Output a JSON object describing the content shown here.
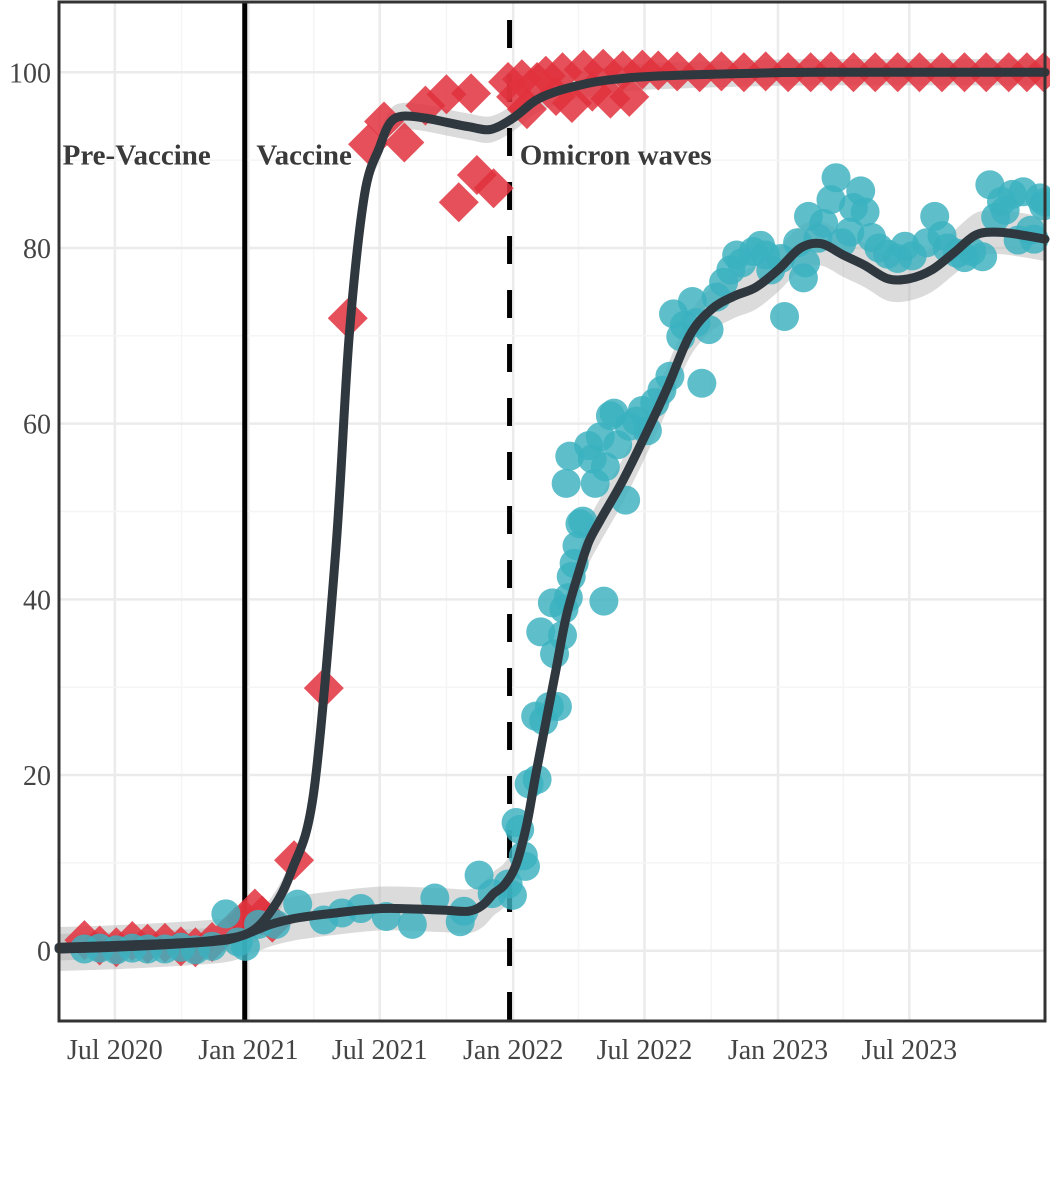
{
  "chart_data": {
    "type": "scatter",
    "title": "",
    "xlabel": "",
    "ylabel": "",
    "xlim": [
      "2020-04-15",
      "2024-01-04"
    ],
    "ylim": [
      -8,
      108
    ],
    "grid": true,
    "legend": "none",
    "x_ticks": [
      "2020-07-01",
      "2021-01-01",
      "2021-07-01",
      "2022-01-01",
      "2022-07-01",
      "2023-01-01",
      "2023-07-01"
    ],
    "x_tick_labels": [
      "Jul 2020",
      "Jan 2021",
      "Jul 2021",
      "Jan 2022",
      "Jul 2022",
      "Jan 2023",
      "Jul 2023"
    ],
    "y_ticks": [
      0,
      20,
      40,
      60,
      80,
      100
    ],
    "y_tick_labels": [
      "0",
      "20",
      "40",
      "60",
      "80",
      "100"
    ],
    "phase_labels": [
      {
        "text": "Pre-Vaccine",
        "x": "2020-04-20",
        "y": 89.5
      },
      {
        "text": "Vaccine",
        "x": "2021-01-12",
        "y": 89.5
      },
      {
        "text": "Omicron waves",
        "x": "2022-01-10",
        "y": 89.5
      }
    ],
    "vertical_lines": [
      {
        "x": "2020-12-27",
        "style": "solid",
        "color": "#000000"
      },
      {
        "x": "2021-12-27",
        "style": "dashed",
        "color": "#000000"
      }
    ],
    "series": [
      {
        "marker": "diamond",
        "color": "#e0313d",
        "points": [
          [
            "2020-05-20",
            1.2
          ],
          [
            "2020-06-10",
            0.6
          ],
          [
            "2020-07-03",
            0.4
          ],
          [
            "2020-07-25",
            1.1
          ],
          [
            "2020-08-15",
            0.8
          ],
          [
            "2020-09-08",
            0.9
          ],
          [
            "2020-09-30",
            0.5
          ],
          [
            "2020-10-20",
            0.4
          ],
          [
            "2020-11-12",
            1.0
          ],
          [
            "2020-12-15",
            2.8
          ],
          [
            "2020-12-28",
            3.5
          ],
          [
            "2021-01-10",
            4.8
          ],
          [
            "2021-01-20",
            4.0
          ],
          [
            "2021-02-03",
            3.2
          ],
          [
            "2021-03-05",
            10.3
          ],
          [
            "2021-04-15",
            29.9
          ],
          [
            "2021-05-18",
            72.0
          ],
          [
            "2021-06-15",
            91.8
          ],
          [
            "2021-07-07",
            94.4
          ],
          [
            "2021-08-04",
            92.0
          ],
          [
            "2021-09-02",
            96.2
          ],
          [
            "2021-10-01",
            97.5
          ],
          [
            "2021-10-18",
            85.2
          ],
          [
            "2021-11-04",
            97.6
          ],
          [
            "2021-11-12",
            88.3
          ],
          [
            "2021-12-05",
            86.8
          ],
          [
            "2021-12-25",
            98.9
          ],
          [
            "2022-01-05",
            97.2
          ],
          [
            "2022-01-13",
            99.2
          ],
          [
            "2022-01-20",
            95.8
          ],
          [
            "2022-02-03",
            98.9
          ],
          [
            "2022-02-15",
            99.6
          ],
          [
            "2022-03-01",
            97.3
          ],
          [
            "2022-03-10",
            100.0
          ],
          [
            "2022-03-23",
            96.5
          ],
          [
            "2022-04-08",
            100.3
          ],
          [
            "2022-04-20",
            97.8
          ],
          [
            "2022-05-05",
            100.4
          ],
          [
            "2022-05-15",
            97.0
          ],
          [
            "2022-06-01",
            100.2
          ],
          [
            "2022-06-10",
            97.2
          ],
          [
            "2022-06-28",
            100.3
          ],
          [
            "2022-07-20",
            100.2
          ],
          [
            "2022-08-15",
            100.1
          ],
          [
            "2022-09-15",
            100.0
          ],
          [
            "2022-10-15",
            100.1
          ],
          [
            "2022-11-15",
            100.0
          ],
          [
            "2022-12-15",
            100.1
          ],
          [
            "2023-01-15",
            100.0
          ],
          [
            "2023-02-15",
            100.0
          ],
          [
            "2023-03-15",
            100.1
          ],
          [
            "2023-04-15",
            100.0
          ],
          [
            "2023-05-15",
            100.0
          ],
          [
            "2023-06-15",
            100.0
          ],
          [
            "2023-07-15",
            100.0
          ],
          [
            "2023-08-15",
            100.0
          ],
          [
            "2023-09-15",
            100.0
          ],
          [
            "2023-10-15",
            100.0
          ],
          [
            "2023-11-15",
            100.0
          ],
          [
            "2023-12-10",
            100.0
          ],
          [
            "2024-01-02",
            100.0
          ]
        ]
      },
      {
        "marker": "circle",
        "color": "#3bb1bf",
        "points": [
          [
            "2020-05-20",
            0.2
          ],
          [
            "2020-06-10",
            0.3
          ],
          [
            "2020-07-03",
            0.1
          ],
          [
            "2020-07-25",
            0.3
          ],
          [
            "2020-08-15",
            0.2
          ],
          [
            "2020-09-08",
            0.2
          ],
          [
            "2020-09-30",
            0.4
          ],
          [
            "2020-10-20",
            0.1
          ],
          [
            "2020-11-12",
            0.5
          ],
          [
            "2020-12-01",
            4.2
          ],
          [
            "2020-12-18",
            1.0
          ],
          [
            "2020-12-28",
            0.5
          ],
          [
            "2021-01-15",
            3.0
          ],
          [
            "2021-02-08",
            3.0
          ],
          [
            "2021-03-10",
            5.3
          ],
          [
            "2021-04-15",
            3.5
          ],
          [
            "2021-05-10",
            4.3
          ],
          [
            "2021-06-05",
            4.8
          ],
          [
            "2021-07-10",
            3.9
          ],
          [
            "2021-08-15",
            3.0
          ],
          [
            "2021-09-15",
            6.0
          ],
          [
            "2021-10-20",
            3.3
          ],
          [
            "2021-10-25",
            4.5
          ],
          [
            "2021-11-15",
            8.6
          ],
          [
            "2021-12-03",
            6.5
          ],
          [
            "2021-12-25",
            7.6
          ],
          [
            "2021-12-31",
            6.3
          ],
          [
            "2022-01-05",
            14.6
          ],
          [
            "2022-01-10",
            13.8
          ],
          [
            "2022-01-15",
            10.8
          ],
          [
            "2022-01-18",
            9.6
          ],
          [
            "2022-01-23",
            19.0
          ],
          [
            "2022-02-03",
            19.5
          ],
          [
            "2022-02-01",
            26.7
          ],
          [
            "2022-02-08",
            36.3
          ],
          [
            "2022-02-12",
            26.2
          ],
          [
            "2022-02-20",
            27.8
          ],
          [
            "2022-02-24",
            39.6
          ],
          [
            "2022-02-27",
            33.8
          ],
          [
            "2022-03-03",
            27.8
          ],
          [
            "2022-03-10",
            35.9
          ],
          [
            "2022-03-12",
            38.9
          ],
          [
            "2022-03-18",
            40.2
          ],
          [
            "2022-03-22",
            42.6
          ],
          [
            "2022-03-26",
            44.1
          ],
          [
            "2022-03-30",
            46.1
          ],
          [
            "2022-04-03",
            48.6
          ],
          [
            "2022-04-07",
            48.9
          ],
          [
            "2022-03-15",
            53.2
          ],
          [
            "2022-03-20",
            56.3
          ],
          [
            "2022-04-15",
            57.5
          ],
          [
            "2022-04-20",
            56.0
          ],
          [
            "2022-04-24",
            53.2
          ],
          [
            "2022-05-01",
            58.5
          ],
          [
            "2022-05-08",
            55.1
          ],
          [
            "2022-05-15",
            60.9
          ],
          [
            "2022-05-20",
            61.2
          ],
          [
            "2022-05-25",
            57.6
          ],
          [
            "2022-05-06",
            39.8
          ],
          [
            "2022-06-05",
            51.3
          ],
          [
            "2022-06-10",
            59.7
          ],
          [
            "2022-06-20",
            60.3
          ],
          [
            "2022-06-28",
            61.5
          ],
          [
            "2022-07-05",
            59.2
          ],
          [
            "2022-07-15",
            62.4
          ],
          [
            "2022-07-25",
            63.8
          ],
          [
            "2022-08-05",
            65.4
          ],
          [
            "2022-08-10",
            72.5
          ],
          [
            "2022-08-20",
            69.9
          ],
          [
            "2022-08-25",
            71.2
          ],
          [
            "2022-09-05",
            73.9
          ],
          [
            "2022-09-10",
            71.5
          ],
          [
            "2022-09-18",
            64.6
          ],
          [
            "2022-09-28",
            70.7
          ],
          [
            "2022-10-08",
            74.4
          ],
          [
            "2022-10-18",
            76.1
          ],
          [
            "2022-10-28",
            77.5
          ],
          [
            "2022-11-05",
            79.2
          ],
          [
            "2022-11-12",
            78.3
          ],
          [
            "2022-11-28",
            79.6
          ],
          [
            "2022-12-08",
            80.3
          ],
          [
            "2022-12-15",
            79.2
          ],
          [
            "2022-12-22",
            77.5
          ],
          [
            "2023-01-05",
            78.8
          ],
          [
            "2023-01-10",
            72.2
          ],
          [
            "2023-01-28",
            80.6
          ],
          [
            "2023-02-05",
            76.6
          ],
          [
            "2023-02-08",
            78.3
          ],
          [
            "2023-02-12",
            83.6
          ],
          [
            "2023-02-25",
            81.1
          ],
          [
            "2023-03-05",
            82.8
          ],
          [
            "2023-03-15",
            85.5
          ],
          [
            "2023-03-22",
            88.0
          ],
          [
            "2023-03-30",
            80.6
          ],
          [
            "2023-04-10",
            81.8
          ],
          [
            "2023-04-15",
            84.6
          ],
          [
            "2023-04-25",
            86.5
          ],
          [
            "2023-05-01",
            84.1
          ],
          [
            "2023-05-10",
            81.2
          ],
          [
            "2023-05-20",
            80.0
          ],
          [
            "2023-06-01",
            79.3
          ],
          [
            "2023-06-15",
            78.8
          ],
          [
            "2023-06-25",
            80.2
          ],
          [
            "2023-07-05",
            79.1
          ],
          [
            "2023-07-25",
            80.6
          ],
          [
            "2023-08-05",
            83.6
          ],
          [
            "2023-08-15",
            81.4
          ],
          [
            "2023-08-22",
            80.0
          ],
          [
            "2023-09-05",
            79.4
          ],
          [
            "2023-09-15",
            78.9
          ],
          [
            "2023-09-25",
            79.6
          ],
          [
            "2023-10-10",
            79.0
          ],
          [
            "2023-10-20",
            87.2
          ],
          [
            "2023-10-28",
            83.5
          ],
          [
            "2023-11-05",
            85.3
          ],
          [
            "2023-11-10",
            84.3
          ],
          [
            "2023-11-20",
            86.1
          ],
          [
            "2023-11-28",
            80.9
          ],
          [
            "2023-12-05",
            86.4
          ],
          [
            "2023-12-15",
            82.0
          ],
          [
            "2023-12-20",
            81.0
          ],
          [
            "2023-12-28",
            85.7
          ],
          [
            "2024-01-02",
            84.8
          ],
          [
            "2024-01-04",
            85.2
          ]
        ]
      }
    ],
    "trend_lines": [
      {
        "color": "#2f373f",
        "points": [
          [
            "2020-04-15",
            0.4
          ],
          [
            "2020-07-01",
            0.6
          ],
          [
            "2020-10-01",
            0.9
          ],
          [
            "2020-11-15",
            1.2
          ],
          [
            "2021-01-01",
            2.0
          ],
          [
            "2021-02-01",
            4.5
          ],
          [
            "2021-03-01",
            9.0
          ],
          [
            "2021-04-01",
            18.0
          ],
          [
            "2021-05-01",
            45.0
          ],
          [
            "2021-05-20",
            70.0
          ],
          [
            "2021-06-10",
            86.0
          ],
          [
            "2021-07-01",
            91.5
          ],
          [
            "2021-07-15",
            94.2
          ],
          [
            "2021-08-01",
            95.0
          ],
          [
            "2021-09-01",
            94.8
          ],
          [
            "2021-10-01",
            94.3
          ],
          [
            "2021-11-01",
            93.8
          ],
          [
            "2021-12-01",
            93.5
          ],
          [
            "2022-01-01",
            94.8
          ],
          [
            "2022-02-01",
            96.8
          ],
          [
            "2022-03-01",
            97.8
          ],
          [
            "2022-04-01",
            98.5
          ],
          [
            "2022-05-01",
            99.0
          ],
          [
            "2022-06-01",
            99.3
          ],
          [
            "2022-07-01",
            99.5
          ],
          [
            "2022-09-01",
            99.7
          ],
          [
            "2022-12-01",
            99.9
          ],
          [
            "2023-03-01",
            100.0
          ],
          [
            "2024-01-04",
            100.0
          ]
        ],
        "band": 1.5
      },
      {
        "color": "#2f373f",
        "points": [
          [
            "2020-04-15",
            0.2
          ],
          [
            "2020-07-01",
            0.4
          ],
          [
            "2020-10-01",
            0.8
          ],
          [
            "2020-12-01",
            1.2
          ],
          [
            "2021-01-01",
            2.0
          ],
          [
            "2021-02-01",
            3.0
          ],
          [
            "2021-03-01",
            3.6
          ],
          [
            "2021-04-01",
            4.0
          ],
          [
            "2021-05-01",
            4.3
          ],
          [
            "2021-06-01",
            4.6
          ],
          [
            "2021-07-01",
            4.8
          ],
          [
            "2021-08-01",
            4.8
          ],
          [
            "2021-09-01",
            4.7
          ],
          [
            "2021-10-01",
            4.6
          ],
          [
            "2021-11-01",
            4.5
          ],
          [
            "2021-11-20",
            5.2
          ],
          [
            "2021-12-05",
            6.5
          ],
          [
            "2021-12-20",
            7.5
          ],
          [
            "2022-01-05",
            9.8
          ],
          [
            "2022-01-20",
            14.5
          ],
          [
            "2022-02-01",
            20.0
          ],
          [
            "2022-02-15",
            26.0
          ],
          [
            "2022-03-01",
            32.0
          ],
          [
            "2022-03-15",
            38.0
          ],
          [
            "2022-04-01",
            43.0
          ],
          [
            "2022-04-15",
            46.5
          ],
          [
            "2022-05-01",
            49.0
          ],
          [
            "2022-06-01",
            53.5
          ],
          [
            "2022-07-01",
            58.5
          ],
          [
            "2022-08-01",
            64.0
          ],
          [
            "2022-09-01",
            70.0
          ],
          [
            "2022-10-01",
            73.0
          ],
          [
            "2022-11-01",
            74.5
          ],
          [
            "2022-12-01",
            75.5
          ],
          [
            "2023-01-01",
            77.5
          ],
          [
            "2023-02-01",
            80.0
          ],
          [
            "2023-03-01",
            80.5
          ],
          [
            "2023-04-01",
            79.2
          ],
          [
            "2023-05-01",
            78.0
          ],
          [
            "2023-06-01",
            76.5
          ],
          [
            "2023-07-01",
            76.5
          ],
          [
            "2023-08-01",
            77.5
          ],
          [
            "2023-09-01",
            79.5
          ],
          [
            "2023-10-01",
            81.5
          ],
          [
            "2023-11-01",
            81.8
          ],
          [
            "2023-12-01",
            81.5
          ],
          [
            "2024-01-04",
            81.0
          ]
        ],
        "band": 2.5
      }
    ]
  }
}
